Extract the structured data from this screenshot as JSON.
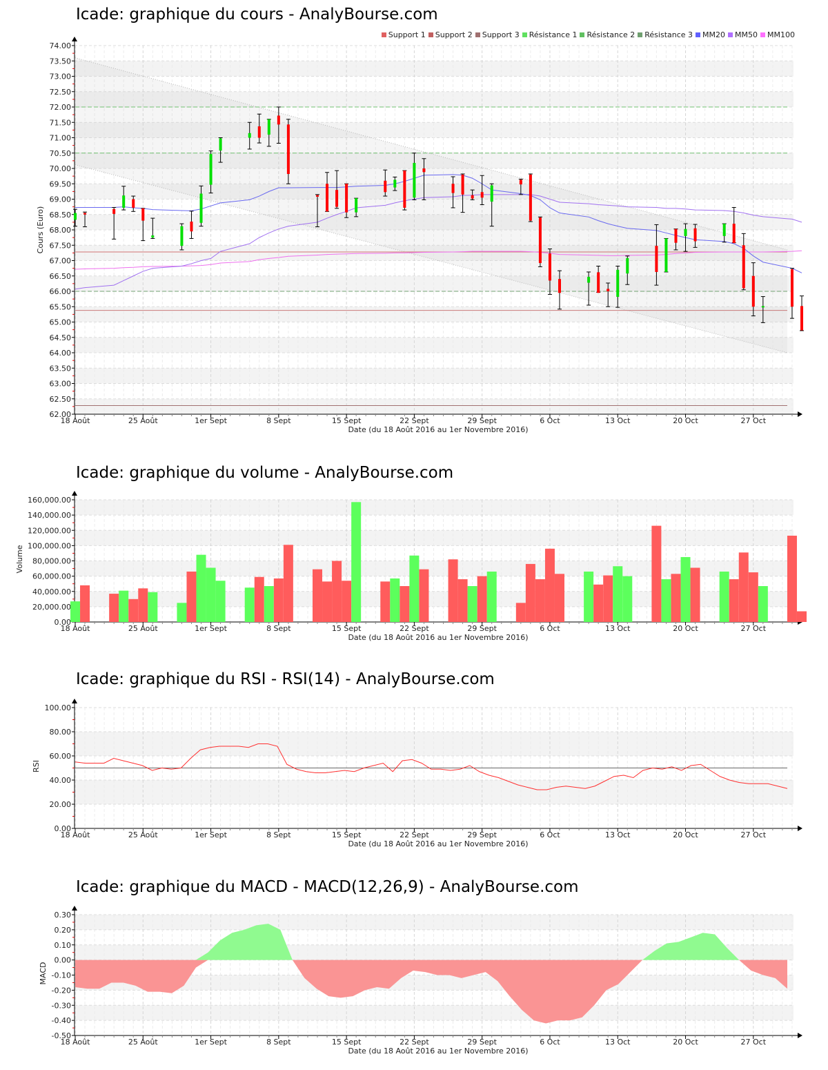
{
  "titles": {
    "price": "Icade: graphique du cours - AnalyBourse.com",
    "volume": "Icade: graphique du volume - AnalyBourse.com",
    "rsi": "Icade: graphique du RSI - RSI(14) - AnalyBourse.com",
    "macd": "Icade: graphique du MACD - MACD(12,26,9) - AnalyBourse.com"
  },
  "x_axis": {
    "label": "Date (du 18 Août 2016 au 1er Novembre 2016)",
    "ticks": [
      "18 Août",
      "25 Août",
      "1er Sept",
      "8 Sept",
      "15 Sept",
      "22 Sept",
      "29 Sept",
      "6 Oct",
      "13 Oct",
      "20 Oct",
      "27 Oct"
    ]
  },
  "legend": [
    {
      "label": "Support 1",
      "color": "#e06060"
    },
    {
      "label": "Support 2",
      "color": "#c06060"
    },
    {
      "label": "Support 3",
      "color": "#a07070"
    },
    {
      "label": "Résistance 1",
      "color": "#60e060"
    },
    {
      "label": "Résistance 2",
      "color": "#60c060"
    },
    {
      "label": "Résistance 3",
      "color": "#70a070"
    },
    {
      "label": "MM20",
      "color": "#6060ff"
    },
    {
      "label": "MM50",
      "color": "#b070ff"
    },
    {
      "label": "MM100",
      "color": "#ff70ff"
    }
  ],
  "colors": {
    "up": "#00e000",
    "down": "#ff0000",
    "volume_up": "#5cff5c",
    "volume_down": "#ff5c5c",
    "macd_pos": "#90fa90",
    "macd_neg": "#fa9494",
    "rsi_line": "#ff3030"
  },
  "chart_data": [
    {
      "type": "candlestick",
      "title": "Icade: graphique du cours - AnalyBourse.com",
      "xlabel": "Date (du 18 Août 2016 au 1er Novembre 2016)",
      "ylabel": "Cours (Euro)",
      "ylim": [
        62.0,
        74.0
      ],
      "yticks": [
        "74.00",
        "73.50",
        "73.00",
        "72.50",
        "72.00",
        "71.50",
        "71.00",
        "70.50",
        "70.00",
        "69.50",
        "69.00",
        "68.50",
        "68.00",
        "67.50",
        "67.00",
        "66.50",
        "66.00",
        "65.50",
        "65.00",
        "64.50",
        "64.00",
        "63.50",
        "63.00",
        "62.50",
        "62.00"
      ],
      "grid": true,
      "levels": {
        "support_1": 65.38,
        "support_2": 67.28,
        "support_3": 62.28,
        "resistance_1": 72.0,
        "resistance_2": 70.5,
        "resistance_3": 66.0
      },
      "candles": [
        {
          "o": 68.33,
          "h": 68.67,
          "l": 68.12,
          "c": 68.55
        },
        {
          "o": 68.55,
          "h": 68.58,
          "l": 68.1,
          "c": 68.5
        },
        {
          "o": 68.68,
          "h": 68.73,
          "l": 67.7,
          "c": 68.52
        },
        {
          "o": 68.72,
          "h": 69.42,
          "l": 68.65,
          "c": 69.12
        },
        {
          "o": 69.0,
          "h": 69.1,
          "l": 68.6,
          "c": 68.72
        },
        {
          "o": 68.7,
          "h": 68.7,
          "l": 67.65,
          "c": 68.3
        },
        {
          "o": 67.75,
          "h": 68.38,
          "l": 67.72,
          "c": 67.82
        },
        {
          "o": 67.48,
          "h": 68.2,
          "l": 67.35,
          "c": 68.12
        },
        {
          "o": 68.27,
          "h": 68.61,
          "l": 67.72,
          "c": 67.95
        },
        {
          "o": 68.23,
          "h": 69.43,
          "l": 68.12,
          "c": 69.18
        },
        {
          "o": 69.47,
          "h": 70.57,
          "l": 69.2,
          "c": 70.47
        },
        {
          "o": 70.58,
          "h": 71.0,
          "l": 70.2,
          "c": 70.98
        },
        {
          "o": 71.0,
          "h": 71.5,
          "l": 70.63,
          "c": 71.15
        },
        {
          "o": 71.37,
          "h": 71.77,
          "l": 70.83,
          "c": 71.0
        },
        {
          "o": 71.1,
          "h": 71.6,
          "l": 70.72,
          "c": 71.6
        },
        {
          "o": 71.72,
          "h": 72.0,
          "l": 70.82,
          "c": 71.43
        },
        {
          "o": 71.43,
          "h": 71.6,
          "l": 69.5,
          "c": 69.82
        },
        {
          "o": 69.13,
          "h": 69.15,
          "l": 68.1,
          "c": 69.08
        },
        {
          "o": 69.5,
          "h": 69.87,
          "l": 68.6,
          "c": 68.6
        },
        {
          "o": 69.3,
          "h": 69.93,
          "l": 68.7,
          "c": 68.75
        },
        {
          "o": 69.5,
          "h": 69.5,
          "l": 68.4,
          "c": 68.57
        },
        {
          "o": 68.57,
          "h": 69.03,
          "l": 68.43,
          "c": 69.03
        },
        {
          "o": 69.6,
          "h": 69.95,
          "l": 69.1,
          "c": 69.23
        },
        {
          "o": 69.38,
          "h": 69.72,
          "l": 69.28,
          "c": 69.63
        },
        {
          "o": 69.93,
          "h": 69.93,
          "l": 68.65,
          "c": 68.72
        },
        {
          "o": 69.05,
          "h": 70.5,
          "l": 68.98,
          "c": 70.18
        },
        {
          "o": 70.0,
          "h": 70.32,
          "l": 68.98,
          "c": 69.88
        },
        {
          "o": 69.5,
          "h": 69.73,
          "l": 68.72,
          "c": 69.2
        },
        {
          "o": 69.8,
          "h": 69.82,
          "l": 68.57,
          "c": 69.15
        },
        {
          "o": 69.13,
          "h": 69.3,
          "l": 68.98,
          "c": 69.02
        },
        {
          "o": 69.23,
          "h": 69.77,
          "l": 68.82,
          "c": 69.05
        },
        {
          "o": 68.92,
          "h": 69.5,
          "l": 68.12,
          "c": 69.45
        },
        {
          "o": 69.63,
          "h": 69.65,
          "l": 69.15,
          "c": 69.48
        },
        {
          "o": 69.8,
          "h": 69.82,
          "l": 68.27,
          "c": 68.3
        },
        {
          "o": 68.4,
          "h": 68.42,
          "l": 66.8,
          "c": 66.92
        },
        {
          "o": 67.23,
          "h": 67.38,
          "l": 65.9,
          "c": 66.35
        },
        {
          "o": 66.4,
          "h": 66.67,
          "l": 65.42,
          "c": 65.95
        },
        {
          "o": 66.28,
          "h": 66.63,
          "l": 65.55,
          "c": 66.47
        },
        {
          "o": 66.62,
          "h": 66.82,
          "l": 65.97,
          "c": 65.95
        },
        {
          "o": 66.08,
          "h": 66.27,
          "l": 65.5,
          "c": 66.0
        },
        {
          "o": 65.82,
          "h": 66.82,
          "l": 65.48,
          "c": 66.7
        },
        {
          "o": 66.58,
          "h": 67.15,
          "l": 66.22,
          "c": 67.08
        },
        {
          "o": 67.48,
          "h": 68.17,
          "l": 66.2,
          "c": 66.63
        },
        {
          "o": 66.63,
          "h": 67.72,
          "l": 66.63,
          "c": 67.72
        },
        {
          "o": 68.03,
          "h": 68.03,
          "l": 67.35,
          "c": 67.58
        },
        {
          "o": 67.8,
          "h": 68.2,
          "l": 67.3,
          "c": 68.03
        },
        {
          "o": 68.05,
          "h": 68.18,
          "l": 67.43,
          "c": 67.63
        },
        {
          "o": 67.8,
          "h": 68.2,
          "l": 67.6,
          "c": 68.2
        },
        {
          "o": 68.2,
          "h": 68.73,
          "l": 67.58,
          "c": 67.57
        },
        {
          "o": 67.5,
          "h": 67.88,
          "l": 66.05,
          "c": 66.1
        },
        {
          "o": 66.5,
          "h": 66.93,
          "l": 65.2,
          "c": 65.5
        },
        {
          "o": 65.5,
          "h": 65.83,
          "l": 64.98,
          "c": 65.52
        },
        {
          "o": 66.72,
          "h": 66.75,
          "l": 65.12,
          "c": 65.5
        },
        {
          "o": 65.52,
          "h": 65.85,
          "l": 64.72,
          "c": 64.73
        }
      ],
      "mm20": [
        68.73,
        68.73,
        68.73,
        68.75,
        68.72,
        68.7,
        68.66,
        68.63,
        68.62,
        68.68,
        68.78,
        68.88,
        68.98,
        69.1,
        69.25,
        69.37,
        69.37,
        69.38,
        69.38,
        69.38,
        69.4,
        69.42,
        69.45,
        69.5,
        69.58,
        69.68,
        69.78,
        69.8,
        69.78,
        69.68,
        69.5,
        69.3,
        69.18,
        69.12,
        68.98,
        68.72,
        68.55,
        68.42,
        68.3,
        68.2,
        68.12,
        68.05,
        67.98,
        67.9,
        67.82,
        67.75,
        67.68,
        67.62,
        67.55,
        67.4,
        67.15,
        66.95,
        66.75,
        66.6
      ],
      "mm50": [
        66.07,
        66.12,
        66.2,
        66.35,
        66.5,
        66.65,
        66.75,
        66.82,
        66.9,
        67.0,
        67.07,
        67.3,
        67.55,
        67.75,
        67.9,
        68.03,
        68.12,
        68.25,
        68.38,
        68.5,
        68.6,
        68.72,
        68.8,
        68.88,
        68.95,
        69.0,
        69.05,
        69.08,
        69.12,
        69.13,
        69.15,
        69.15,
        69.15,
        69.15,
        69.1,
        69.0,
        68.9,
        68.85,
        68.82,
        68.8,
        68.78,
        68.75,
        68.73,
        68.7,
        68.7,
        68.68,
        68.65,
        68.63,
        68.6,
        68.55,
        68.48,
        68.43,
        68.35,
        68.25
      ],
      "mm100": [
        66.72,
        66.73,
        66.75,
        66.77,
        66.78,
        66.8,
        66.81,
        66.82,
        66.83,
        66.84,
        66.87,
        66.92,
        66.97,
        67.03,
        67.07,
        67.1,
        67.14,
        67.18,
        67.2,
        67.21,
        67.22,
        67.23,
        67.24,
        67.25,
        67.25,
        67.26,
        67.27,
        67.28,
        67.29,
        67.3,
        67.3,
        67.3,
        67.3,
        67.29,
        67.27,
        67.24,
        67.2,
        67.18,
        67.17,
        67.16,
        67.16,
        67.17,
        67.18,
        67.2,
        67.23,
        67.25,
        67.27,
        67.28,
        67.28,
        67.28,
        67.28,
        67.28,
        67.3,
        67.32
      ],
      "trend_channel": {
        "upper": {
          "start": 73.6,
          "end": 67.35
        },
        "lower": {
          "start": 70.12,
          "end": 64.0
        }
      }
    },
    {
      "type": "bar",
      "title": "Icade: graphique du volume - AnalyBourse.com",
      "xlabel": "Date (du 18 Août 2016 au 1er Novembre 2016)",
      "ylabel": "Volume",
      "ylim": [
        0,
        160000
      ],
      "yticks": [
        "160,000.00",
        "140,000.00",
        "120,000.00",
        "100,000.00",
        "80,000.00",
        "60,000.00",
        "40,000.00",
        "20,000.00",
        "0.00"
      ],
      "values": [
        27000,
        48000,
        37000,
        41000,
        30000,
        44000,
        39000,
        25000,
        66000,
        88000,
        71000,
        54000,
        45000,
        59000,
        47000,
        57000,
        101000,
        69000,
        53000,
        80000,
        54000,
        157000,
        53000,
        57000,
        47000,
        87000,
        69000,
        82000,
        56000,
        47000,
        60000,
        66000,
        25000,
        76000,
        56000,
        96000,
        63000,
        66000,
        49000,
        61000,
        73000,
        60000,
        126000,
        56000,
        63000,
        85000,
        71000,
        66000,
        56000,
        91000,
        65000,
        47000,
        113000,
        14000
      ],
      "directions": [
        "up",
        "down",
        "down",
        "up",
        "down",
        "down",
        "up",
        "up",
        "down",
        "up",
        "up",
        "up",
        "up",
        "down",
        "up",
        "down",
        "down",
        "down",
        "down",
        "down",
        "down",
        "up",
        "down",
        "up",
        "down",
        "up",
        "down",
        "down",
        "down",
        "up",
        "down",
        "up",
        "down",
        "down",
        "down",
        "down",
        "down",
        "up",
        "down",
        "down",
        "up",
        "up",
        "down",
        "up",
        "down",
        "up",
        "down",
        "up",
        "down",
        "down",
        "down",
        "up",
        "down",
        "down"
      ]
    },
    {
      "type": "line",
      "title": "Icade: graphique du RSI - RSI(14) - AnalyBourse.com",
      "xlabel": "Date (du 18 Août 2016 au 1er Novembre 2016)",
      "ylabel": "RSI",
      "ylim": [
        0,
        100
      ],
      "yticks": [
        "100.00",
        "80.00",
        "60.00",
        "40.00",
        "20.00",
        "0.00"
      ],
      "reference_line": 50,
      "values": [
        55,
        54,
        54,
        54,
        58,
        56,
        54,
        52,
        48,
        50,
        49,
        50,
        58,
        65,
        67,
        68,
        68,
        68,
        67,
        70,
        70,
        68,
        53,
        49,
        47,
        46,
        46,
        47,
        48,
        47,
        50,
        52,
        54,
        47,
        56,
        57,
        54,
        49,
        49,
        48,
        49,
        52,
        47,
        44,
        42,
        39,
        36,
        34,
        32,
        32,
        34,
        35,
        34,
        33,
        35,
        39,
        43,
        44,
        42,
        48,
        50,
        49,
        51,
        48,
        52,
        53,
        48,
        43,
        40,
        38,
        37,
        37,
        37,
        35,
        33
      ],
      "values_note": "RSI sampled per trading day from 18 Aug to 1 Nov (approx.)"
    },
    {
      "type": "area",
      "title": "Icade: graphique du MACD - MACD(12,26,9) - AnalyBourse.com",
      "xlabel": "Date (du 18 Août 2016 au 1er Novembre 2016)",
      "ylabel": "MACD",
      "ylim": [
        -0.5,
        0.3
      ],
      "yticks": [
        "0.30",
        "0.20",
        "0.10",
        "0.00",
        "-0.10",
        "-0.20",
        "-0.30",
        "-0.40",
        "-0.50"
      ],
      "values": [
        -0.18,
        -0.19,
        -0.19,
        -0.15,
        -0.15,
        -0.17,
        -0.21,
        -0.21,
        -0.22,
        -0.17,
        -0.05,
        0.05,
        0.13,
        0.18,
        0.2,
        0.23,
        0.24,
        0.2,
        0.0,
        -0.12,
        -0.19,
        -0.24,
        -0.25,
        -0.24,
        -0.2,
        -0.18,
        -0.19,
        -0.12,
        -0.07,
        -0.08,
        -0.1,
        -0.1,
        -0.12,
        -0.1,
        -0.08,
        -0.14,
        -0.24,
        -0.33,
        -0.4,
        -0.42,
        -0.4,
        -0.4,
        -0.38,
        -0.3,
        -0.2,
        -0.16,
        -0.08,
        0.0,
        0.06,
        0.11,
        0.12,
        0.15,
        0.18,
        0.17,
        0.08,
        0.0,
        -0.07,
        -0.1,
        -0.12,
        -0.19
      ]
    }
  ]
}
